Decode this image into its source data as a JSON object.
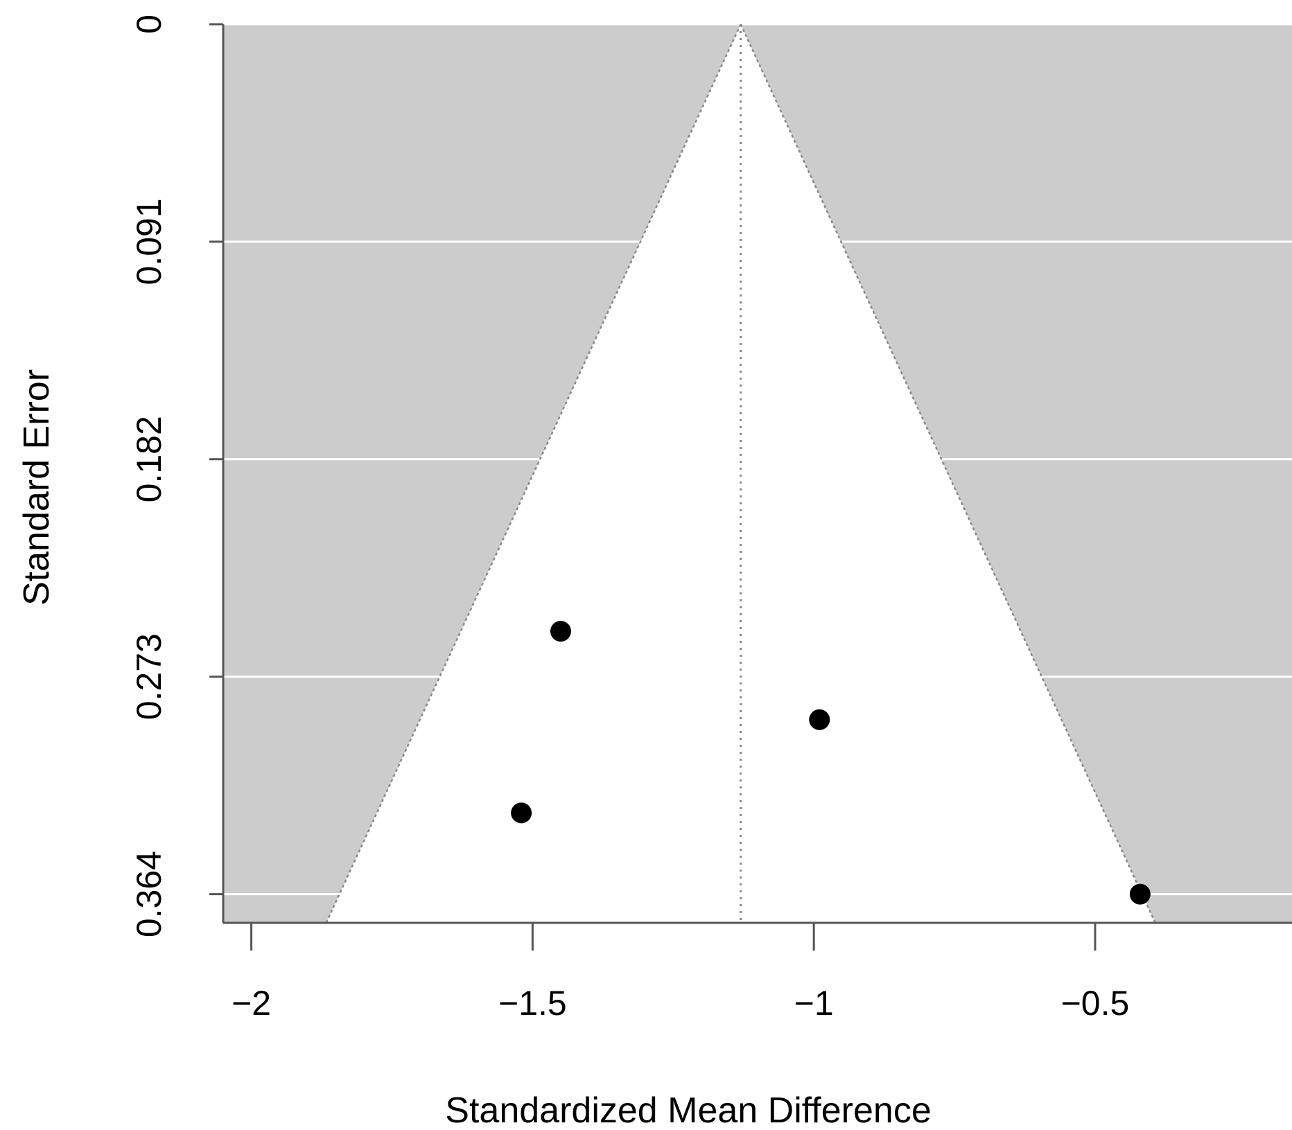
{
  "chart_data": {
    "type": "scatter",
    "title": "",
    "xlabel": "Standardized Mean Difference",
    "ylabel": "Standard Error",
    "xlim": [
      -2.05,
      -0.15
    ],
    "ylim": [
      0,
      0.376
    ],
    "y_reversed": true,
    "x_ticks": [
      {
        "value": -2,
        "label": "−2"
      },
      {
        "value": -1.5,
        "label": "−1.5"
      },
      {
        "value": -1,
        "label": "−1"
      },
      {
        "value": -0.5,
        "label": "−0.5"
      }
    ],
    "y_ticks": [
      {
        "value": 0,
        "label": "0"
      },
      {
        "value": 0.091,
        "label": "0.091"
      },
      {
        "value": 0.182,
        "label": "0.182"
      },
      {
        "value": 0.273,
        "label": "0.273"
      },
      {
        "value": 0.364,
        "label": "0.364"
      }
    ],
    "pooled_estimate": -1.13,
    "funnel_z": 1.96,
    "points": [
      {
        "x": -1.45,
        "y": 0.254
      },
      {
        "x": -1.52,
        "y": 0.33
      },
      {
        "x": -0.99,
        "y": 0.291
      },
      {
        "x": -0.42,
        "y": 0.364
      }
    ],
    "colors": {
      "outside_funnel": "#cccccc",
      "funnel": "#ffffff",
      "gridline": "#ffffff",
      "point": "#000000",
      "axis": "#555555"
    }
  }
}
